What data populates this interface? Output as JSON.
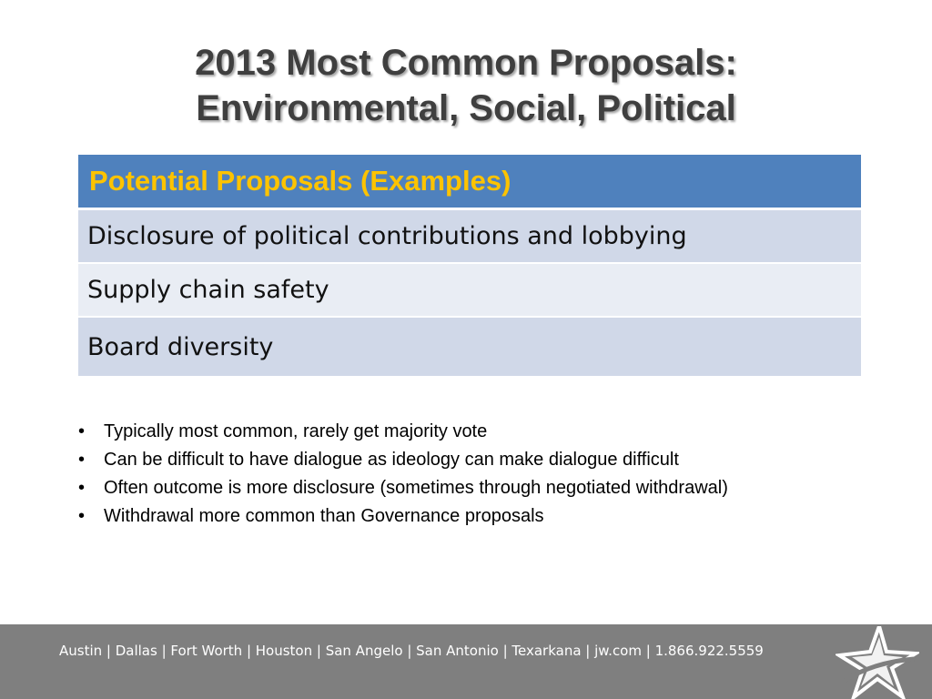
{
  "slide": {
    "title_line1": "2013 Most Common Proposals:",
    "title_line2": "Environmental, Social, Political"
  },
  "table": {
    "header": "Potential Proposals (Examples)",
    "rows": [
      "Disclosure of political contributions and lobbying",
      "Supply chain safety",
      "Board diversity"
    ]
  },
  "bullets": [
    "Typically most common, rarely get majority vote",
    "Can be difficult to have dialogue as ideology can make dialogue difficult",
    "Often outcome is more disclosure (sometimes through negotiated withdrawal)",
    "Withdrawal more common than Governance proposals"
  ],
  "bullet_glyph": "•",
  "footer": {
    "text": "Austin | Dallas | Fort Worth | Houston | San Angelo | San Antonio | Texarkana | jw.com | 1.866.922.5559",
    "logo_icon": "star-logo-icon"
  },
  "colors": {
    "header_bg": "#4f81bd",
    "header_text": "#fdc300",
    "row_odd": "#d0d8e8",
    "row_even": "#e9edf4",
    "footer_bg": "#7f7f7f"
  }
}
